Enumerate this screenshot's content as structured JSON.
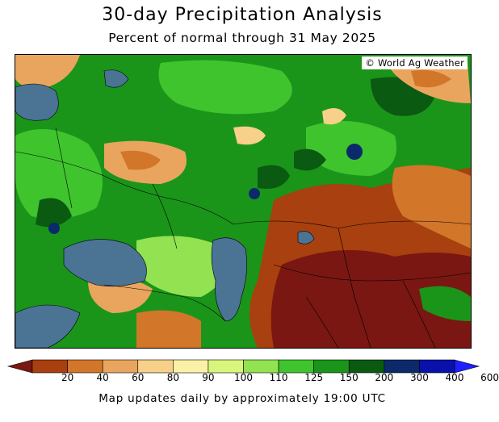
{
  "header": {
    "title": "30-day Precipitation Analysis",
    "subtitle": "Percent of normal through 31 May 2025"
  },
  "map": {
    "copyright": "© World Ag Weather",
    "water_color": "#4a7394"
  },
  "legend": {
    "unit": "percent of normal",
    "ticks": [
      "20",
      "40",
      "60",
      "80",
      "90",
      "100",
      "110",
      "125",
      "150",
      "200",
      "300",
      "400",
      "600"
    ],
    "colors": [
      "#7a1712",
      "#a8400f",
      "#d2762a",
      "#e9a55e",
      "#f7d08a",
      "#fbf1a6",
      "#d8f67c",
      "#93e251",
      "#3fc42e",
      "#1a951a",
      "#0a5a12",
      "#0a2a6a",
      "#0a11aa",
      "#1f1fff"
    ]
  },
  "footer": {
    "note": "Map updates daily by approximately 19:00 UTC"
  }
}
